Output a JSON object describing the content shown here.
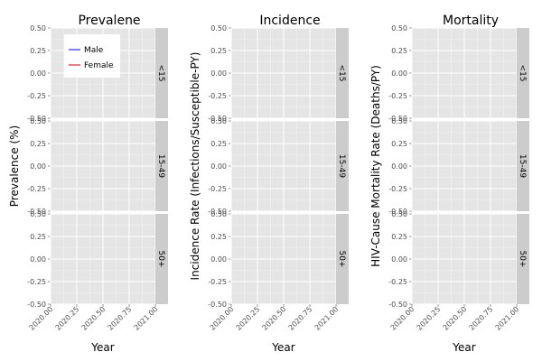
{
  "chart_data": [
    {
      "type": "line",
      "title": "Prevalene",
      "xlabel": "Year",
      "ylabel": "Prevalence (%)",
      "xlim": [
        2020.0,
        2021.0
      ],
      "ylim": [
        -0.5,
        0.5
      ],
      "x_ticks": [
        "2020.00",
        "2020.25",
        "2020.50",
        "2020.75",
        "2021.00"
      ],
      "y_ticks": [
        "-0.50",
        "-0.25",
        "0.00",
        "0.25",
        "0.50"
      ],
      "facets": [
        "<15",
        "15-49",
        "50+"
      ],
      "legend": {
        "placement": "top-left",
        "entries": [
          {
            "name": "Male",
            "color": "#0000ff"
          },
          {
            "name": "Female",
            "color": "#cc0000"
          }
        ]
      },
      "series": [
        {
          "name": "Male",
          "color": "#0000ff",
          "values": []
        },
        {
          "name": "Female",
          "color": "#cc0000",
          "values": []
        }
      ],
      "grid": true
    },
    {
      "type": "line",
      "title": "Incidence",
      "xlabel": "Year",
      "ylabel": "Incidence Rate (Infections/Susceptible-PY)",
      "xlim": [
        2020.0,
        2021.0
      ],
      "ylim": [
        -0.5,
        0.5
      ],
      "x_ticks": [
        "2020.00",
        "2020.25",
        "2020.50",
        "2020.75",
        "2021.00"
      ],
      "y_ticks": [
        "-0.50",
        "-0.25",
        "0.00",
        "0.25",
        "0.50"
      ],
      "facets": [
        "<15",
        "15-49",
        "50+"
      ],
      "series": [],
      "grid": true
    },
    {
      "type": "line",
      "title": "Mortality",
      "xlabel": "Year",
      "ylabel": "HIV-Cause Mortality Rate (Deaths/PY)",
      "xlim": [
        2020.0,
        2021.0
      ],
      "ylim": [
        -0.5,
        0.5
      ],
      "x_ticks": [
        "2020.00",
        "2020.25",
        "2020.50",
        "2020.75",
        "2021.00"
      ],
      "y_ticks": [
        "-0.50",
        "-0.25",
        "0.00",
        "0.25",
        "0.50"
      ],
      "facets": [
        "<15",
        "15-49",
        "50+"
      ],
      "series": [],
      "grid": true
    }
  ]
}
